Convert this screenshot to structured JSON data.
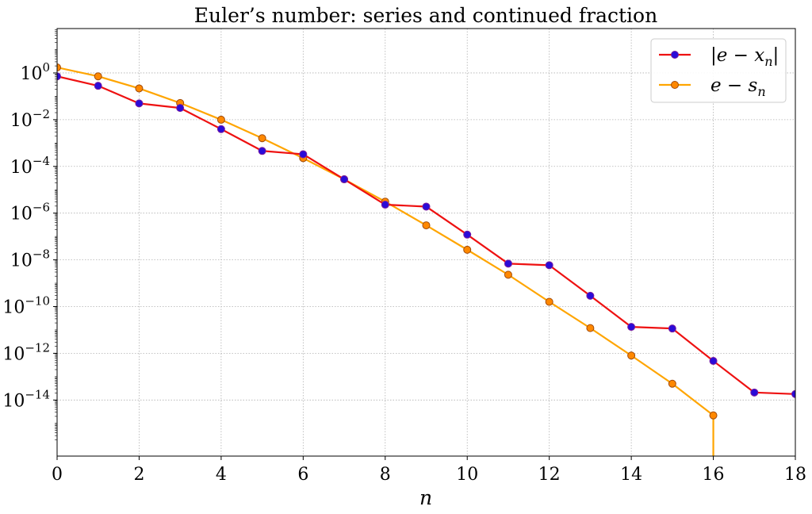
{
  "chart_data": {
    "type": "line",
    "title": "Euler’s number: series and continued fraction",
    "xlabel": "n",
    "ylabel": "",
    "xlim": [
      0,
      18
    ],
    "ylim_log10": [
      -16.4,
      1.9
    ],
    "y_scale": "log",
    "grid": true,
    "legend_position": "top-right",
    "x_ticks": [
      0,
      2,
      4,
      6,
      8,
      10,
      12,
      14,
      16,
      18
    ],
    "y_ticks": [
      {
        "exp": 0,
        "label": "10",
        "sup": "0"
      },
      {
        "exp": -2,
        "label": "10",
        "sup": "−2"
      },
      {
        "exp": -4,
        "label": "10",
        "sup": "−4"
      },
      {
        "exp": -6,
        "label": "10",
        "sup": "−6"
      },
      {
        "exp": -8,
        "label": "10",
        "sup": "−8"
      },
      {
        "exp": -10,
        "label": "10",
        "sup": "−10"
      },
      {
        "exp": -12,
        "label": "10",
        "sup": "−12"
      },
      {
        "exp": -14,
        "label": "10",
        "sup": "−14"
      }
    ],
    "series": [
      {
        "name_main": "|e − x",
        "name_sub": "n",
        "name_tail": "|",
        "color": "#ee1111",
        "marker_face": "#2a0bd8",
        "marker_edge": "#7a1ea0",
        "x": [
          0,
          1,
          2,
          3,
          4,
          5,
          6,
          7,
          8,
          9,
          10,
          11,
          12,
          13,
          14,
          15,
          16,
          17,
          18
        ],
        "y": [
          0.718,
          0.282,
          0.0497,
          0.0317,
          0.00394,
          0.000459,
          0.000331,
          2.8e-05,
          2.3e-06,
          1.9e-06,
          1.2e-07,
          6.9e-09,
          5.9e-09,
          2.9e-10,
          1.35e-11,
          1.15e-11,
          4.7e-13,
          2.1e-14,
          1.8e-14
        ]
      },
      {
        "name_main": "e − s",
        "name_sub": "n",
        "name_tail": "",
        "color": "#ffa500",
        "marker_face": "#ff8800",
        "marker_edge": "#a04a08",
        "x": [
          0,
          1,
          2,
          3,
          4,
          5,
          6,
          7,
          8,
          9,
          10,
          11,
          12,
          13,
          14,
          15,
          16
        ],
        "y": [
          1.718,
          0.718,
          0.218,
          0.0516,
          0.00995,
          0.00161,
          0.000226,
          2.8e-05,
          3.1e-06,
          3e-07,
          2.7e-08,
          2.3e-09,
          1.6e-10,
          1.2e-11,
          8e-13,
          5e-14,
          2.2e-15
        ],
        "drops_to_zero_after_last": true
      }
    ]
  }
}
